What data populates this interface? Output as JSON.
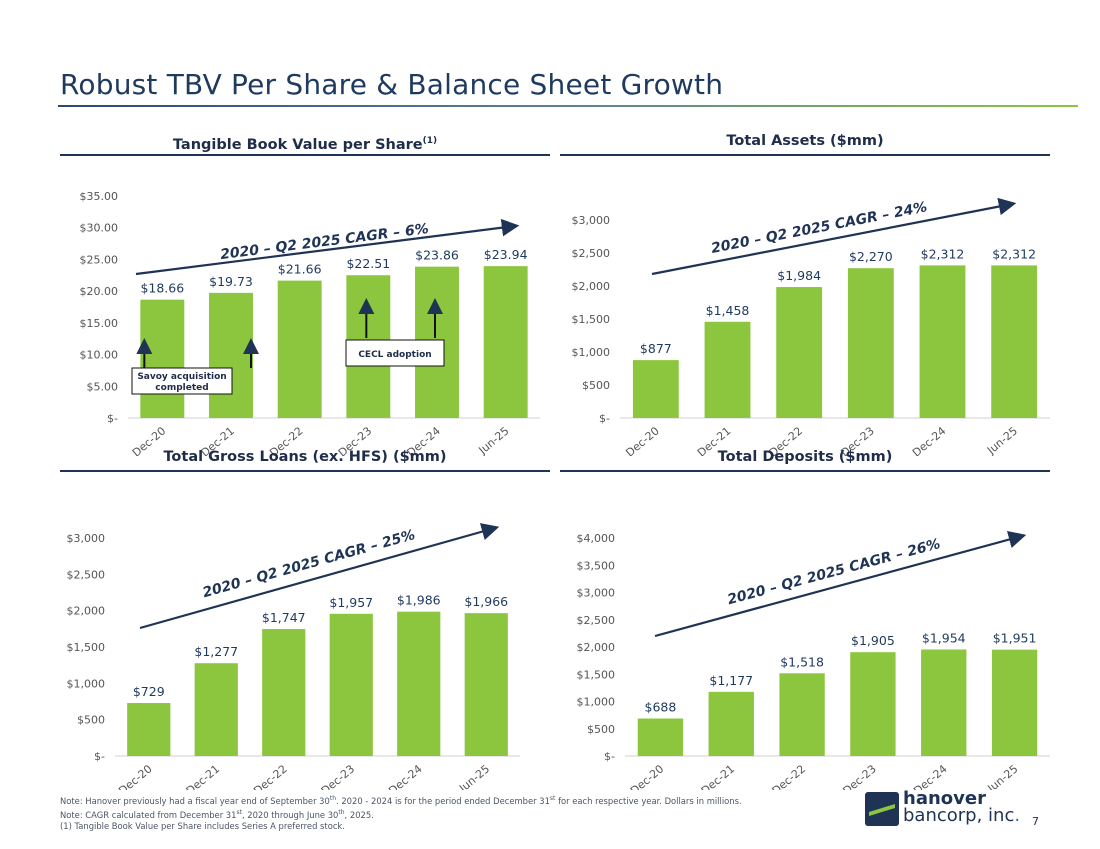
{
  "page": {
    "title": "Robust TBV Per Share & Balance Sheet Growth",
    "page_number": "7"
  },
  "colors": {
    "bar": "#8cc63f",
    "arrow": "#1f3355",
    "rule": "#1f3355",
    "axis_text": "#555555"
  },
  "footnotes": {
    "line1_a": "Note: Hanover previously had a fiscal year end of September 30",
    "line1_sup1": "th",
    "line1_b": ". 2020 - 2024 is for the period ended December 31",
    "line1_sup2": "st",
    "line1_c": " for each respective year. Dollars in millions.",
    "line2_a": "Note: CAGR calculated from December 31",
    "line2_sup1": "st",
    "line2_b": ", 2020 through June 30",
    "line2_sup2": "th",
    "line2_c": ", 2025.",
    "line3": "(1) Tangible Book Value per Share includes Series A preferred stock."
  },
  "logo": {
    "line1": "hanover",
    "line2": "bancorp, inc",
    "dot": "."
  },
  "charts": {
    "tbv": {
      "heading": "Tangible Book Value per Share",
      "heading_sup": "(1)",
      "cagr": "2020 – Q2 2025 CAGR – 6%",
      "annotations": {
        "savoy": [
          "Savoy acquisition",
          "completed"
        ],
        "cecl": "CECL adoption"
      }
    },
    "assets": {
      "heading": "Total Assets ($mm)",
      "cagr": "2020 – Q2 2025 CAGR – 24%"
    },
    "loans": {
      "heading": "Total Gross Loans (ex. HFS) ($mm)",
      "cagr": "2020 – Q2 2025 CAGR – 25%"
    },
    "deposits": {
      "heading": "Total Deposits ($mm)",
      "cagr": "2020 – Q2 2025 CAGR – 26%"
    }
  },
  "chart_data": [
    {
      "id": "tbv",
      "type": "bar",
      "title": "Tangible Book Value per Share(1)",
      "categories": [
        "Dec-20",
        "Dec-21",
        "Dec-22",
        "Dec-23",
        "Dec-24",
        "Jun-25"
      ],
      "values": [
        18.66,
        19.73,
        21.66,
        22.51,
        23.86,
        23.94
      ],
      "labels": [
        "$18.66",
        "$19.73",
        "$21.66",
        "$22.51",
        "$23.86",
        "$23.94"
      ],
      "ylim": [
        0,
        35
      ],
      "yticks": [
        0,
        5,
        10,
        15,
        20,
        25,
        30,
        35
      ],
      "ytick_labels": [
        "$-",
        "$5.00",
        "$10.00",
        "$15.00",
        "$20.00",
        "$25.00",
        "$30.00",
        "$35.00"
      ]
    },
    {
      "id": "assets",
      "type": "bar",
      "title": "Total Assets ($mm)",
      "categories": [
        "Dec-20",
        "Dec-21",
        "Dec-22",
        "Dec-23",
        "Dec-24",
        "Jun-25"
      ],
      "values": [
        877,
        1458,
        1984,
        2270,
        2312,
        2312
      ],
      "labels": [
        "$877",
        "$1,458",
        "$1,984",
        "$2,270",
        "$2,312",
        "$2,312"
      ],
      "ylim": [
        0,
        3000
      ],
      "yticks": [
        0,
        500,
        1000,
        1500,
        2000,
        2500,
        3000
      ],
      "ytick_labels": [
        "$-",
        "$500",
        "$1,000",
        "$1,500",
        "$2,000",
        "$2,500",
        "$3,000"
      ]
    },
    {
      "id": "loans",
      "type": "bar",
      "title": "Total Gross Loans (ex. HFS) ($mm)",
      "categories": [
        "Dec-20",
        "Dec-21",
        "Dec-22",
        "Dec-23",
        "Dec-24",
        "Jun-25"
      ],
      "values": [
        729,
        1277,
        1747,
        1957,
        1986,
        1966
      ],
      "labels": [
        "$729",
        "$1,277",
        "$1,747",
        "$1,957",
        "$1,986",
        "$1,966"
      ],
      "ylim": [
        0,
        3000
      ],
      "yticks": [
        0,
        500,
        1000,
        1500,
        2000,
        2500,
        3000
      ],
      "ytick_labels": [
        "$-",
        "$500",
        "$1,000",
        "$1,500",
        "$2,000",
        "$2,500",
        "$3,000"
      ]
    },
    {
      "id": "deposits",
      "type": "bar",
      "title": "Total Deposits ($mm)",
      "categories": [
        "Dec-20",
        "Dec-21",
        "Dec-22",
        "Dec-23",
        "Dec-24",
        "Jun-25"
      ],
      "values": [
        688,
        1177,
        1518,
        1905,
        1954,
        1951
      ],
      "labels": [
        "$688",
        "$1,177",
        "$1,518",
        "$1,905",
        "$1,954",
        "$1,951"
      ],
      "ylim": [
        0,
        4000
      ],
      "yticks": [
        0,
        500,
        1000,
        1500,
        2000,
        2500,
        3000,
        3500,
        4000
      ],
      "ytick_labels": [
        "$-",
        "$500",
        "$1,000",
        "$1,500",
        "$2,000",
        "$2,500",
        "$3,000",
        "$3,500",
        "$4,000"
      ]
    }
  ]
}
